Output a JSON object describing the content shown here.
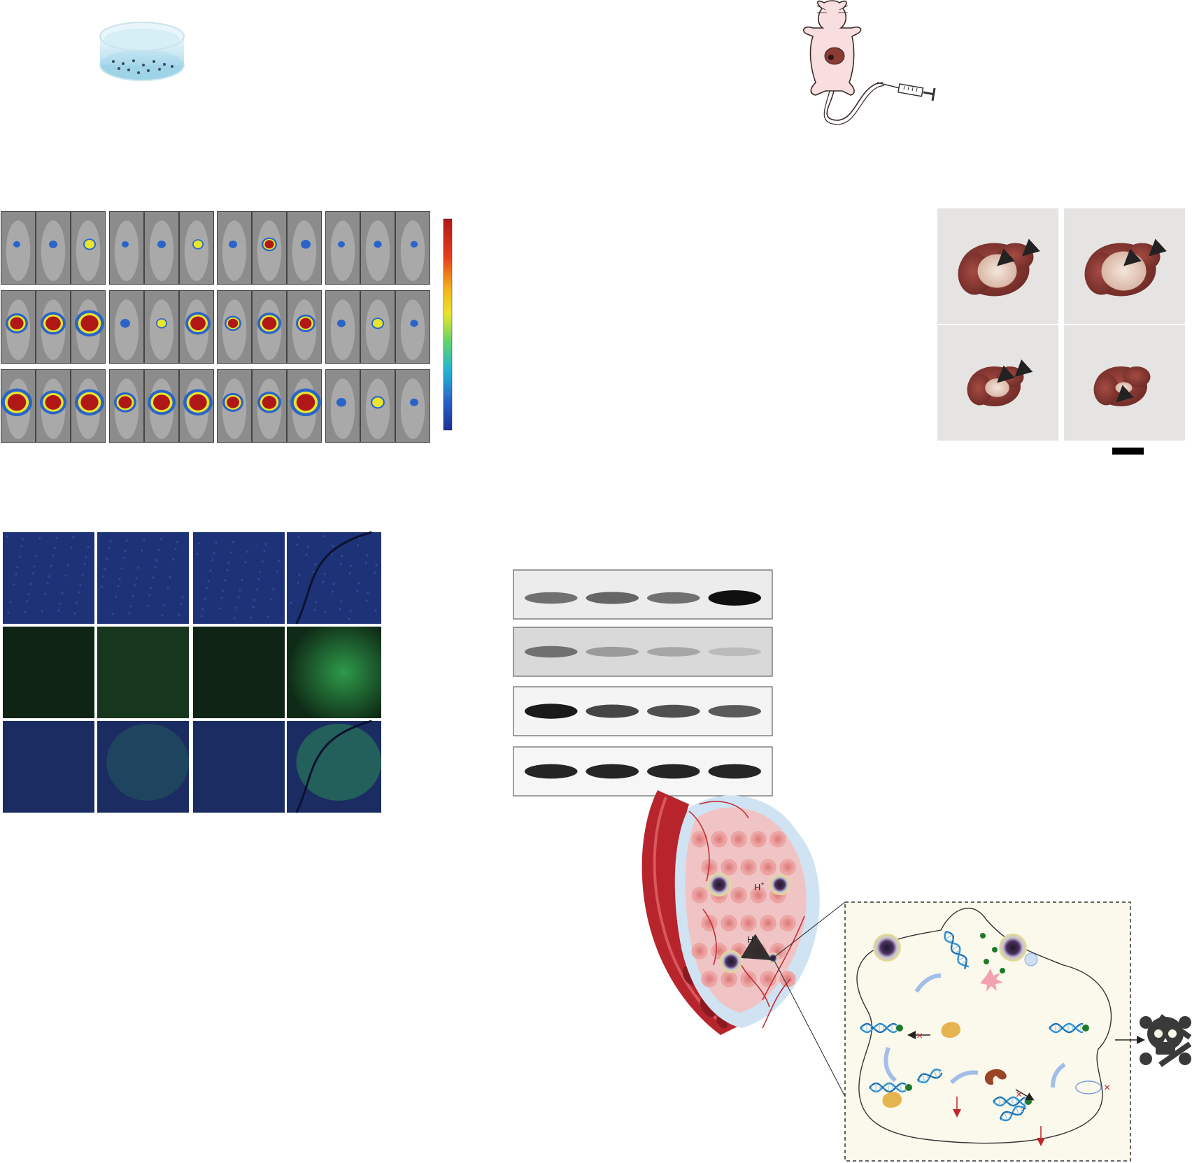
{
  "scheme": {
    "protons": [
      {
        "base": "H",
        "sup": "+"
      },
      {
        "base": "H",
        "sup": "+"
      }
    ]
  },
  "colors": {
    "ivis_scale": [
      "#b01818",
      "#e83c1c",
      "#f5b21a",
      "#e8e62a",
      "#5fd36b",
      "#21b4d6",
      "#2a64c8",
      "#1d2f98"
    ],
    "dapi": "#1e3278",
    "fitc": "#1f5a2c",
    "liver": "#8b3a34",
    "vessel": "#b8242c",
    "panel_bg": "#fbf8ec"
  },
  "ivis": {
    "groups": 4,
    "rows": 3,
    "mice_per_group": 3
  },
  "western": {
    "lanes": 4,
    "blots": 4
  },
  "if_grid": {
    "rows": [
      "dapi",
      "fitc",
      "merge"
    ],
    "columns": 4
  },
  "liver_photos": {
    "count": 4
  }
}
